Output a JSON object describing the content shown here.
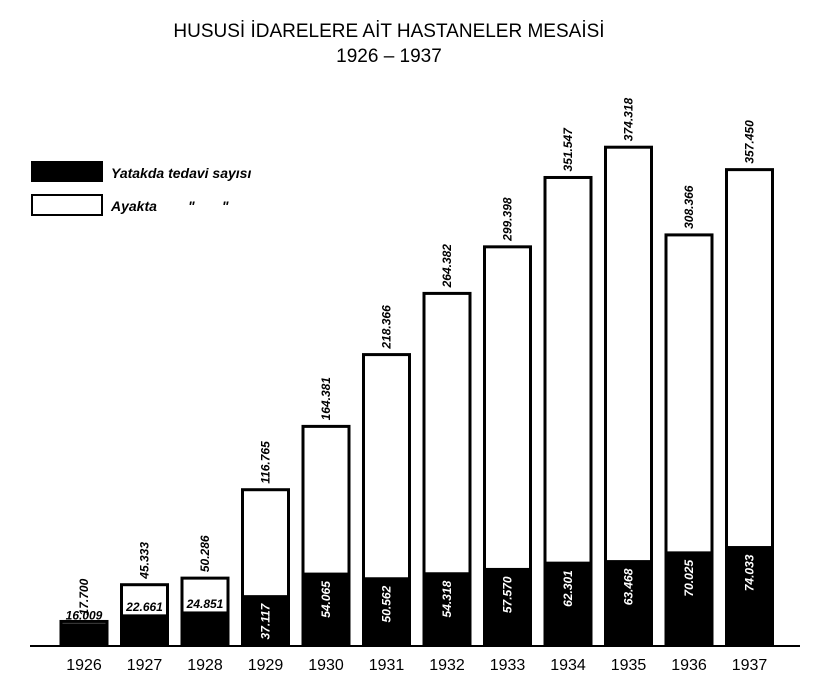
{
  "chart_data": {
    "type": "bar",
    "title": "HUSUSİ İDARELERE AİT HASTANELER MESAİSİ",
    "subtitle": "1926 – 1937",
    "xlabel": "",
    "ylabel": "",
    "ylim": [
      0,
      400000
    ],
    "grid": false,
    "legend_position": "top-left",
    "categories": [
      "1926",
      "1927",
      "1928",
      "1929",
      "1930",
      "1931",
      "1932",
      "1933",
      "1934",
      "1935",
      "1936",
      "1937"
    ],
    "series": [
      {
        "name": "Yatakda tedavi sayısı",
        "color": "#000000",
        "values": [
          16009,
          22661,
          24851,
          37117,
          54065,
          50562,
          54318,
          57570,
          62301,
          63468,
          70025,
          74033
        ],
        "labels": [
          "16.009",
          "22.661",
          "24.851",
          "37.117",
          "54.065",
          "50.562",
          "54.318",
          "57.570",
          "62.301",
          "63.468",
          "70.025",
          "74.033"
        ]
      },
      {
        "name": "Ayakta        \"       \"",
        "color": "#ffffff",
        "values": [
          17700,
          45333,
          50286,
          116765,
          164381,
          218366,
          264382,
          299398,
          351547,
          374318,
          308366,
          357450
        ],
        "labels": [
          "17.700",
          "45.333",
          "50.286",
          "116.765",
          "164.381",
          "218.366",
          "264.382",
          "299.398",
          "351.547",
          "374.318",
          "308.366",
          "357.450"
        ]
      }
    ]
  }
}
